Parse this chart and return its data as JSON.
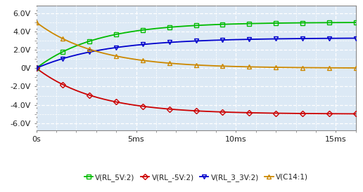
{
  "xlim": [
    0,
    0.016
  ],
  "ylim": [
    -6.8,
    6.8
  ],
  "xticks": [
    0,
    0.005,
    0.01,
    0.015
  ],
  "xticklabels": [
    "0s",
    "5ms",
    "10ms",
    "15ms"
  ],
  "yticks": [
    -6.0,
    -4.0,
    -2.0,
    0.0,
    2.0,
    4.0,
    6.0
  ],
  "yticklabels": [
    "-6.0V",
    "-4.0V",
    "-2.0V",
    "0V",
    "2.0V",
    "4.0V",
    "6.0V"
  ],
  "background_color": "#ffffff",
  "plot_bg_color": "#dce9f5",
  "grid_color": "#ffffff",
  "series": [
    {
      "label": "V(RL_5V:2)",
      "color": "#00bb00",
      "marker": "s",
      "tau": 0.003,
      "asym": 5.0,
      "init": 0.0
    },
    {
      "label": "V(RL_-5V:2)",
      "color": "#cc0000",
      "marker": "D",
      "tau": 0.003,
      "asym": -5.0,
      "init": 0.0
    },
    {
      "label": "V(RL_3_3V:2)",
      "color": "#0000cc",
      "marker": "v",
      "tau": 0.0035,
      "asym": 3.3,
      "init": 0.0
    },
    {
      "label": "V(C14:1)",
      "color": "#cc8800",
      "marker": "^",
      "tau": 0.003,
      "asym": 0.0,
      "init": 5.0
    }
  ],
  "tick_fontsize": 8.0,
  "legend_fontsize": 7.5,
  "linewidth": 1.3,
  "marker_size": 4.0,
  "n_markers": 13
}
